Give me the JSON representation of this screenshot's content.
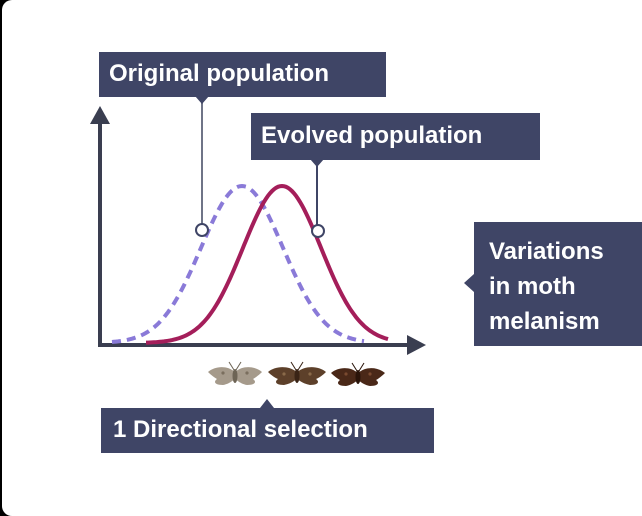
{
  "labels": {
    "original": "Original population",
    "evolved": "Evolved population",
    "variations": [
      "Variations",
      "in moth",
      "melanism"
    ],
    "directional": "1 Directional selection"
  },
  "colors": {
    "label_bg": "#3f4566",
    "original_curve": "#8a7ad8",
    "evolved_curve": "#a41e5a",
    "axis": "#3a3e50",
    "moth_light": "#a59a8b",
    "moth_medium": "#5d402a",
    "moth_dark": "#4a2818"
  },
  "icons": [
    "moth-light-icon",
    "moth-medium-icon",
    "moth-dark-icon"
  ]
}
